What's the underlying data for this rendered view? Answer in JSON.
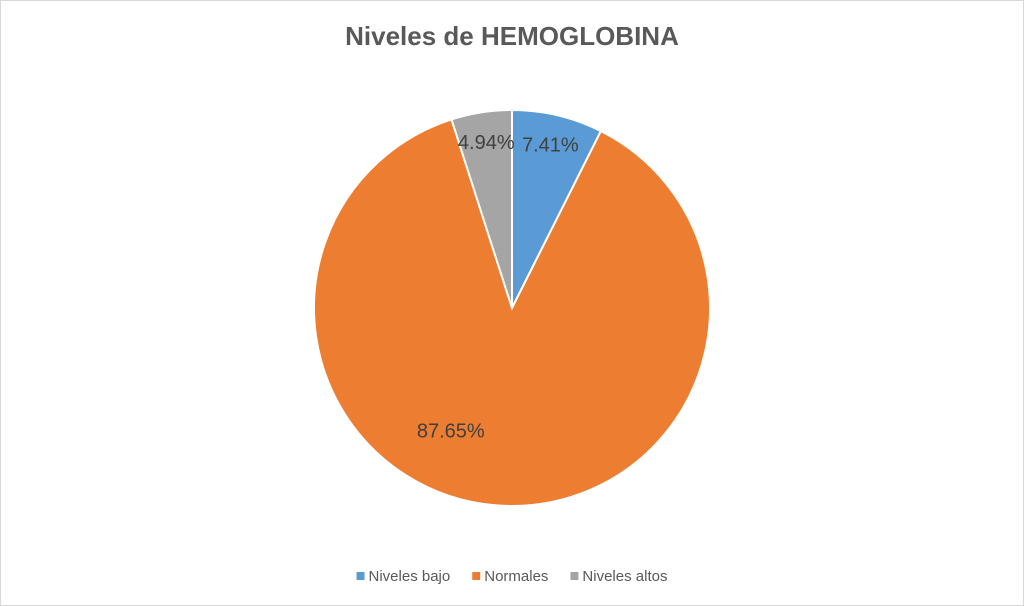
{
  "chart_data": {
    "type": "pie",
    "title": "Niveles de HEMOGLOBINA",
    "categories": [
      "Niveles bajo",
      "Normales",
      "Niveles altos"
    ],
    "values": [
      7.41,
      87.65,
      4.94
    ],
    "value_labels": [
      "7.41%",
      "87.65%",
      "4.94%"
    ],
    "colors": [
      "#5b9bd5",
      "#ed7d31",
      "#a5a5a5"
    ],
    "legend": "bottom"
  }
}
